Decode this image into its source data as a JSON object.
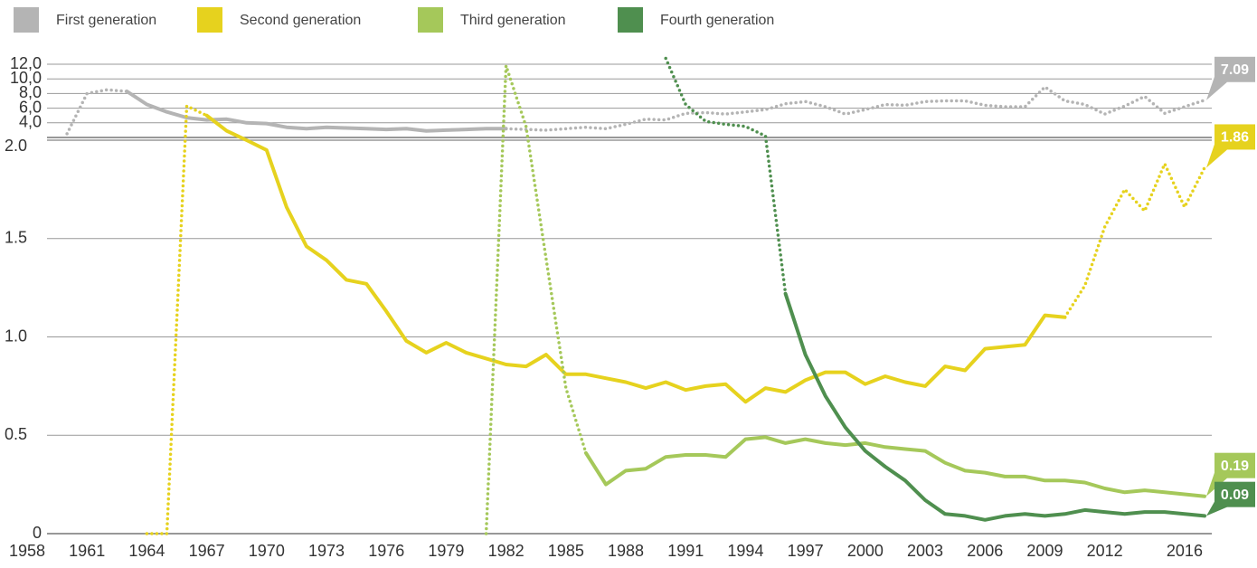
{
  "chart_data": {
    "type": "line",
    "x": [
      1958,
      1959,
      1960,
      1961,
      1962,
      1963,
      1964,
      1965,
      1966,
      1967,
      1968,
      1969,
      1970,
      1971,
      1972,
      1973,
      1974,
      1975,
      1976,
      1977,
      1978,
      1979,
      1980,
      1981,
      1982,
      1983,
      1984,
      1985,
      1986,
      1987,
      1988,
      1989,
      1990,
      1991,
      1992,
      1993,
      1994,
      1995,
      1996,
      1997,
      1998,
      1999,
      2000,
      2001,
      2002,
      2003,
      2004,
      2005,
      2006,
      2007,
      2008,
      2009,
      2010,
      2011,
      2012,
      2013,
      2014,
      2015,
      2016,
      2017
    ],
    "xlim": [
      1958,
      2017
    ],
    "xticks": [
      1958,
      1961,
      1964,
      1967,
      1970,
      1973,
      1976,
      1979,
      1982,
      1985,
      1988,
      1991,
      1994,
      1997,
      2000,
      2003,
      2006,
      2009,
      2012,
      2016
    ],
    "ylim": [
      0,
      12
    ],
    "y_break": 2,
    "yticks": [
      {
        "value": 12,
        "label": "12,0"
      },
      {
        "value": 10,
        "label": "10,0"
      },
      {
        "value": 8,
        "label": "8,0"
      },
      {
        "value": 6,
        "label": "6,0"
      },
      {
        "value": 4,
        "label": "4,0"
      },
      {
        "value": 2,
        "label": "2.0"
      },
      {
        "value": 1.5,
        "label": "1.5"
      },
      {
        "value": 1,
        "label": "1.0"
      },
      {
        "value": 0.5,
        "label": "0.5"
      },
      0
    ],
    "grid": true,
    "series": [
      {
        "name": "First generation",
        "color": "#b4b4b4",
        "end_label": "7.09",
        "solid_span": [
          1963,
          1982
        ],
        "values": [
          null,
          null,
          2.5,
          8.0,
          8.5,
          8.3,
          6.5,
          5.5,
          4.7,
          4.4,
          4.5,
          4.0,
          3.9,
          3.4,
          3.2,
          3.4,
          3.3,
          3.2,
          3.1,
          3.2,
          2.9,
          3.0,
          3.1,
          3.2,
          3.2,
          3.1,
          3.0,
          3.2,
          3.4,
          3.2,
          3.8,
          4.5,
          4.4,
          5.3,
          5.4,
          5.2,
          5.5,
          5.8,
          6.6,
          6.9,
          6.2,
          5.2,
          5.8,
          6.5,
          6.4,
          6.9,
          7.0,
          7.0,
          6.4,
          6.2,
          6.2,
          8.9,
          7.0,
          6.5,
          5.2,
          6.3,
          7.6,
          5.3,
          6.2,
          7.09
        ]
      },
      {
        "name": "Second generation",
        "color": "#e6d21e",
        "end_label": "1.86",
        "solid_span": [
          1967,
          2010
        ],
        "values": [
          null,
          null,
          null,
          null,
          null,
          null,
          0,
          0,
          6.3,
          5.0,
          2.9,
          2.0,
          1.95,
          1.66,
          1.46,
          1.39,
          1.29,
          1.27,
          1.13,
          0.98,
          0.92,
          0.97,
          0.92,
          0.89,
          0.86,
          0.85,
          0.91,
          0.81,
          0.81,
          0.79,
          0.77,
          0.74,
          0.77,
          0.73,
          0.75,
          0.76,
          0.67,
          0.74,
          0.72,
          0.78,
          0.82,
          0.82,
          0.76,
          0.8,
          0.77,
          0.75,
          0.85,
          0.83,
          0.94,
          0.95,
          0.96,
          1.11,
          1.1,
          1.26,
          1.56,
          1.75,
          1.64,
          1.88,
          1.66,
          1.86
        ]
      },
      {
        "name": "Third generation",
        "color": "#a5c85a",
        "end_label": "0.19",
        "solid_span": [
          1986,
          2017
        ],
        "values": [
          null,
          null,
          null,
          null,
          null,
          null,
          null,
          null,
          null,
          null,
          null,
          null,
          null,
          null,
          null,
          null,
          null,
          null,
          null,
          null,
          null,
          null,
          null,
          0,
          11.8,
          3.5,
          1.4,
          0.74,
          0.41,
          0.25,
          0.32,
          0.33,
          0.39,
          0.4,
          0.4,
          0.39,
          0.48,
          0.49,
          0.46,
          0.48,
          0.46,
          0.45,
          0.46,
          0.44,
          0.43,
          0.42,
          0.36,
          0.32,
          0.31,
          0.29,
          0.29,
          0.27,
          0.27,
          0.26,
          0.23,
          0.21,
          0.22,
          0.21,
          0.2,
          0.19
        ]
      },
      {
        "name": "Fourth generation",
        "color": "#4f8f4f",
        "end_label": "0.09",
        "solid_span": [
          1996,
          2017
        ],
        "values": [
          null,
          null,
          null,
          null,
          null,
          null,
          null,
          null,
          null,
          null,
          null,
          null,
          null,
          null,
          null,
          null,
          null,
          null,
          null,
          null,
          null,
          null,
          null,
          null,
          null,
          null,
          null,
          null,
          null,
          null,
          null,
          null,
          12.8,
          6.5,
          4.2,
          3.8,
          3.5,
          2.2,
          1.22,
          0.91,
          0.7,
          0.54,
          0.42,
          0.34,
          0.27,
          0.17,
          0.1,
          0.09,
          0.07,
          0.09,
          0.1,
          0.09,
          0.1,
          0.12,
          0.11,
          0.1,
          0.11,
          0.11,
          0.1,
          0.09
        ]
      }
    ]
  }
}
